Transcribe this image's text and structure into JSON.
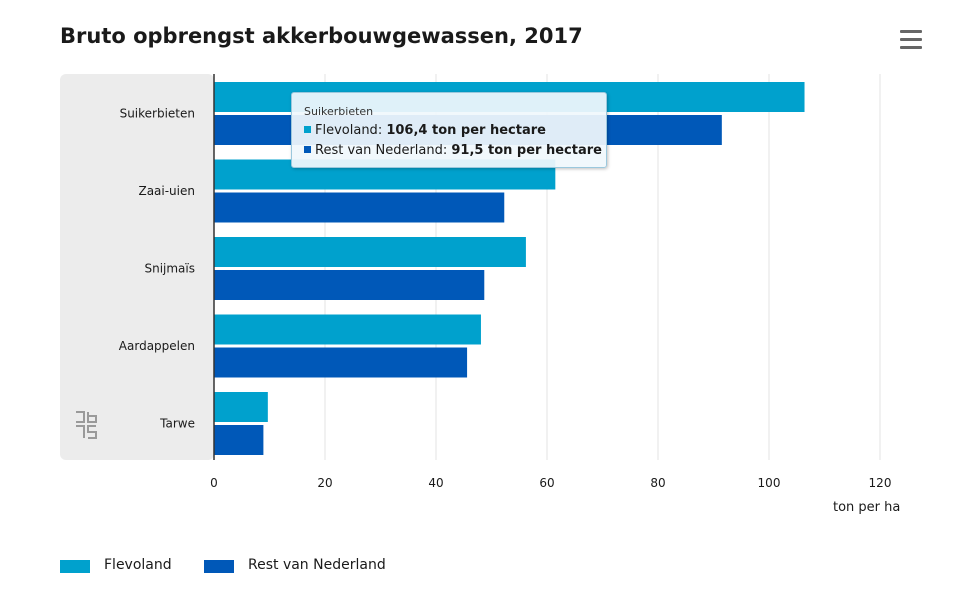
{
  "chart_data": {
    "type": "bar",
    "orientation": "horizontal",
    "title": "Bruto opbrengst akkerbouwgewassen, 2017",
    "categories": [
      "Suikerbieten",
      "Zaai-uien",
      "Snijmaïs",
      "Aardappelen",
      "Tarwe"
    ],
    "series": [
      {
        "name": "Flevoland",
        "color": "#00a1cd",
        "values": [
          106.4,
          61.5,
          56.2,
          48.1,
          9.7
        ]
      },
      {
        "name": "Rest van Nederland",
        "color": "#0058b8",
        "values": [
          91.5,
          52.3,
          48.7,
          45.6,
          8.9
        ]
      }
    ],
    "xlabel": "ton per ha",
    "xlim": [
      0,
      120
    ],
    "xticks": [
      0,
      20,
      40,
      60,
      80,
      100,
      120
    ],
    "grid": true,
    "legend_position": "bottom-left"
  },
  "menu_icon": "hamburger-menu-icon",
  "logo_icon": "cbs-logo-icon",
  "tooltip": {
    "title": "Suikerbieten",
    "rows": [
      {
        "series": "Flevoland",
        "sep": ": ",
        "value": "106,4 ton per hectare",
        "color": "#00a1cd"
      },
      {
        "series": "Rest van Nederland",
        "sep": ": ",
        "value": "91,5 ton per hectare",
        "color": "#0058b8"
      }
    ]
  }
}
